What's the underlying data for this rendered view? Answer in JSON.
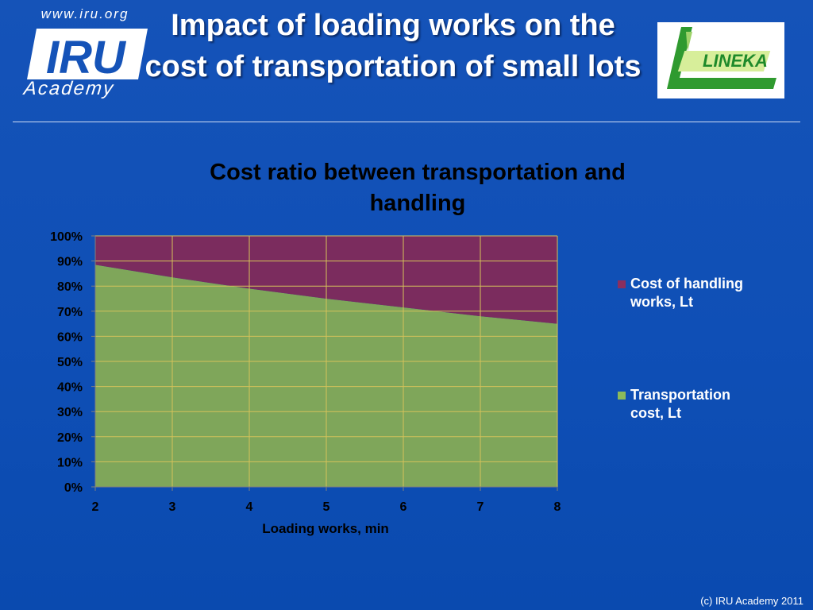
{
  "slide": {
    "title": "Impact of loading works on the cost of transportation of small lots",
    "copyright": "(c) IRU Academy 2011"
  },
  "logos": {
    "iru_url": "www.iru.org",
    "iru_letters": "IRU",
    "iru_academy": "Academy",
    "lineka": "LINEKA"
  },
  "colors": {
    "background": "#1553b8",
    "handling": "#7b2c5e",
    "transport": "#7fa65a",
    "grid": "#d4c25a",
    "legend_handling": "#8b2f5f",
    "legend_transport": "#8cba5a"
  },
  "chart_data": {
    "type": "area",
    "stacked": "percent",
    "title": "Cost ratio between transportation and handling",
    "xlabel": "Loading works, min",
    "ylabel": "",
    "x": [
      2,
      3,
      4,
      5,
      6,
      7,
      8
    ],
    "ylim": [
      0,
      100
    ],
    "yticks": [
      "0%",
      "10%",
      "20%",
      "30%",
      "40%",
      "50%",
      "60%",
      "70%",
      "80%",
      "90%",
      "100%"
    ],
    "grid": true,
    "legend_position": "right",
    "series": [
      {
        "name": "Transportation cost, Lt",
        "values": [
          88.5,
          83.5,
          79,
          75,
          71.5,
          68,
          65
        ]
      },
      {
        "name": "Cost of handling works, Lt",
        "values": [
          11.5,
          16.5,
          21,
          25,
          28.5,
          32,
          35
        ]
      }
    ]
  },
  "legend": [
    {
      "label": "Cost of handling works, Lt"
    },
    {
      "label": "Transportation cost, Lt"
    }
  ]
}
